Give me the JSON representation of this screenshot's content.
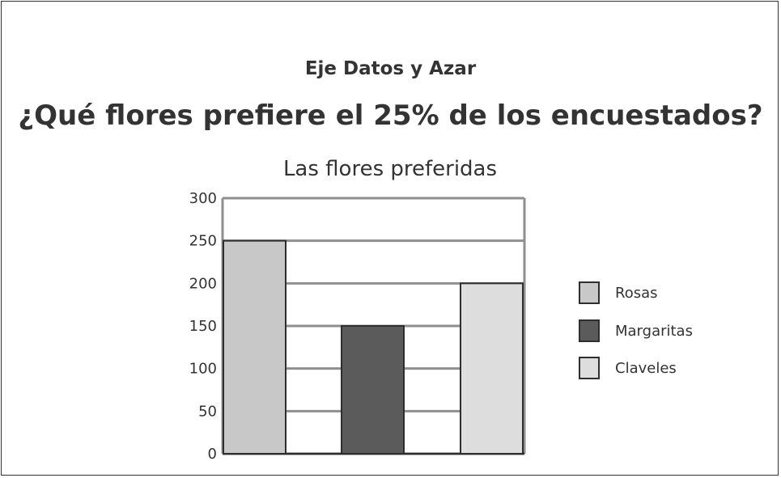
{
  "header": {
    "subject": "Eje Datos y Azar",
    "question": "¿Qué flores prefiere el 25% de los encuestados?"
  },
  "chart_data": {
    "type": "bar",
    "title": "Las flores preferidas",
    "xlabel": "",
    "ylabel": "",
    "categories": [
      "Rosas",
      "Margaritas",
      "Claveles"
    ],
    "values": [
      250,
      150,
      200
    ],
    "colors": [
      "#c7c8c7",
      "#5b5b5b",
      "#dcdddc"
    ],
    "ylim": [
      0,
      300
    ],
    "yticks": [
      0,
      50,
      100,
      150,
      200,
      250,
      300
    ],
    "ytick_labels": [
      "0",
      "50",
      "100",
      "150",
      "200",
      "250",
      "300"
    ],
    "grid": true,
    "legend_position": "right",
    "legend": [
      "Rosas",
      "Margaritas",
      "Claveles"
    ]
  }
}
